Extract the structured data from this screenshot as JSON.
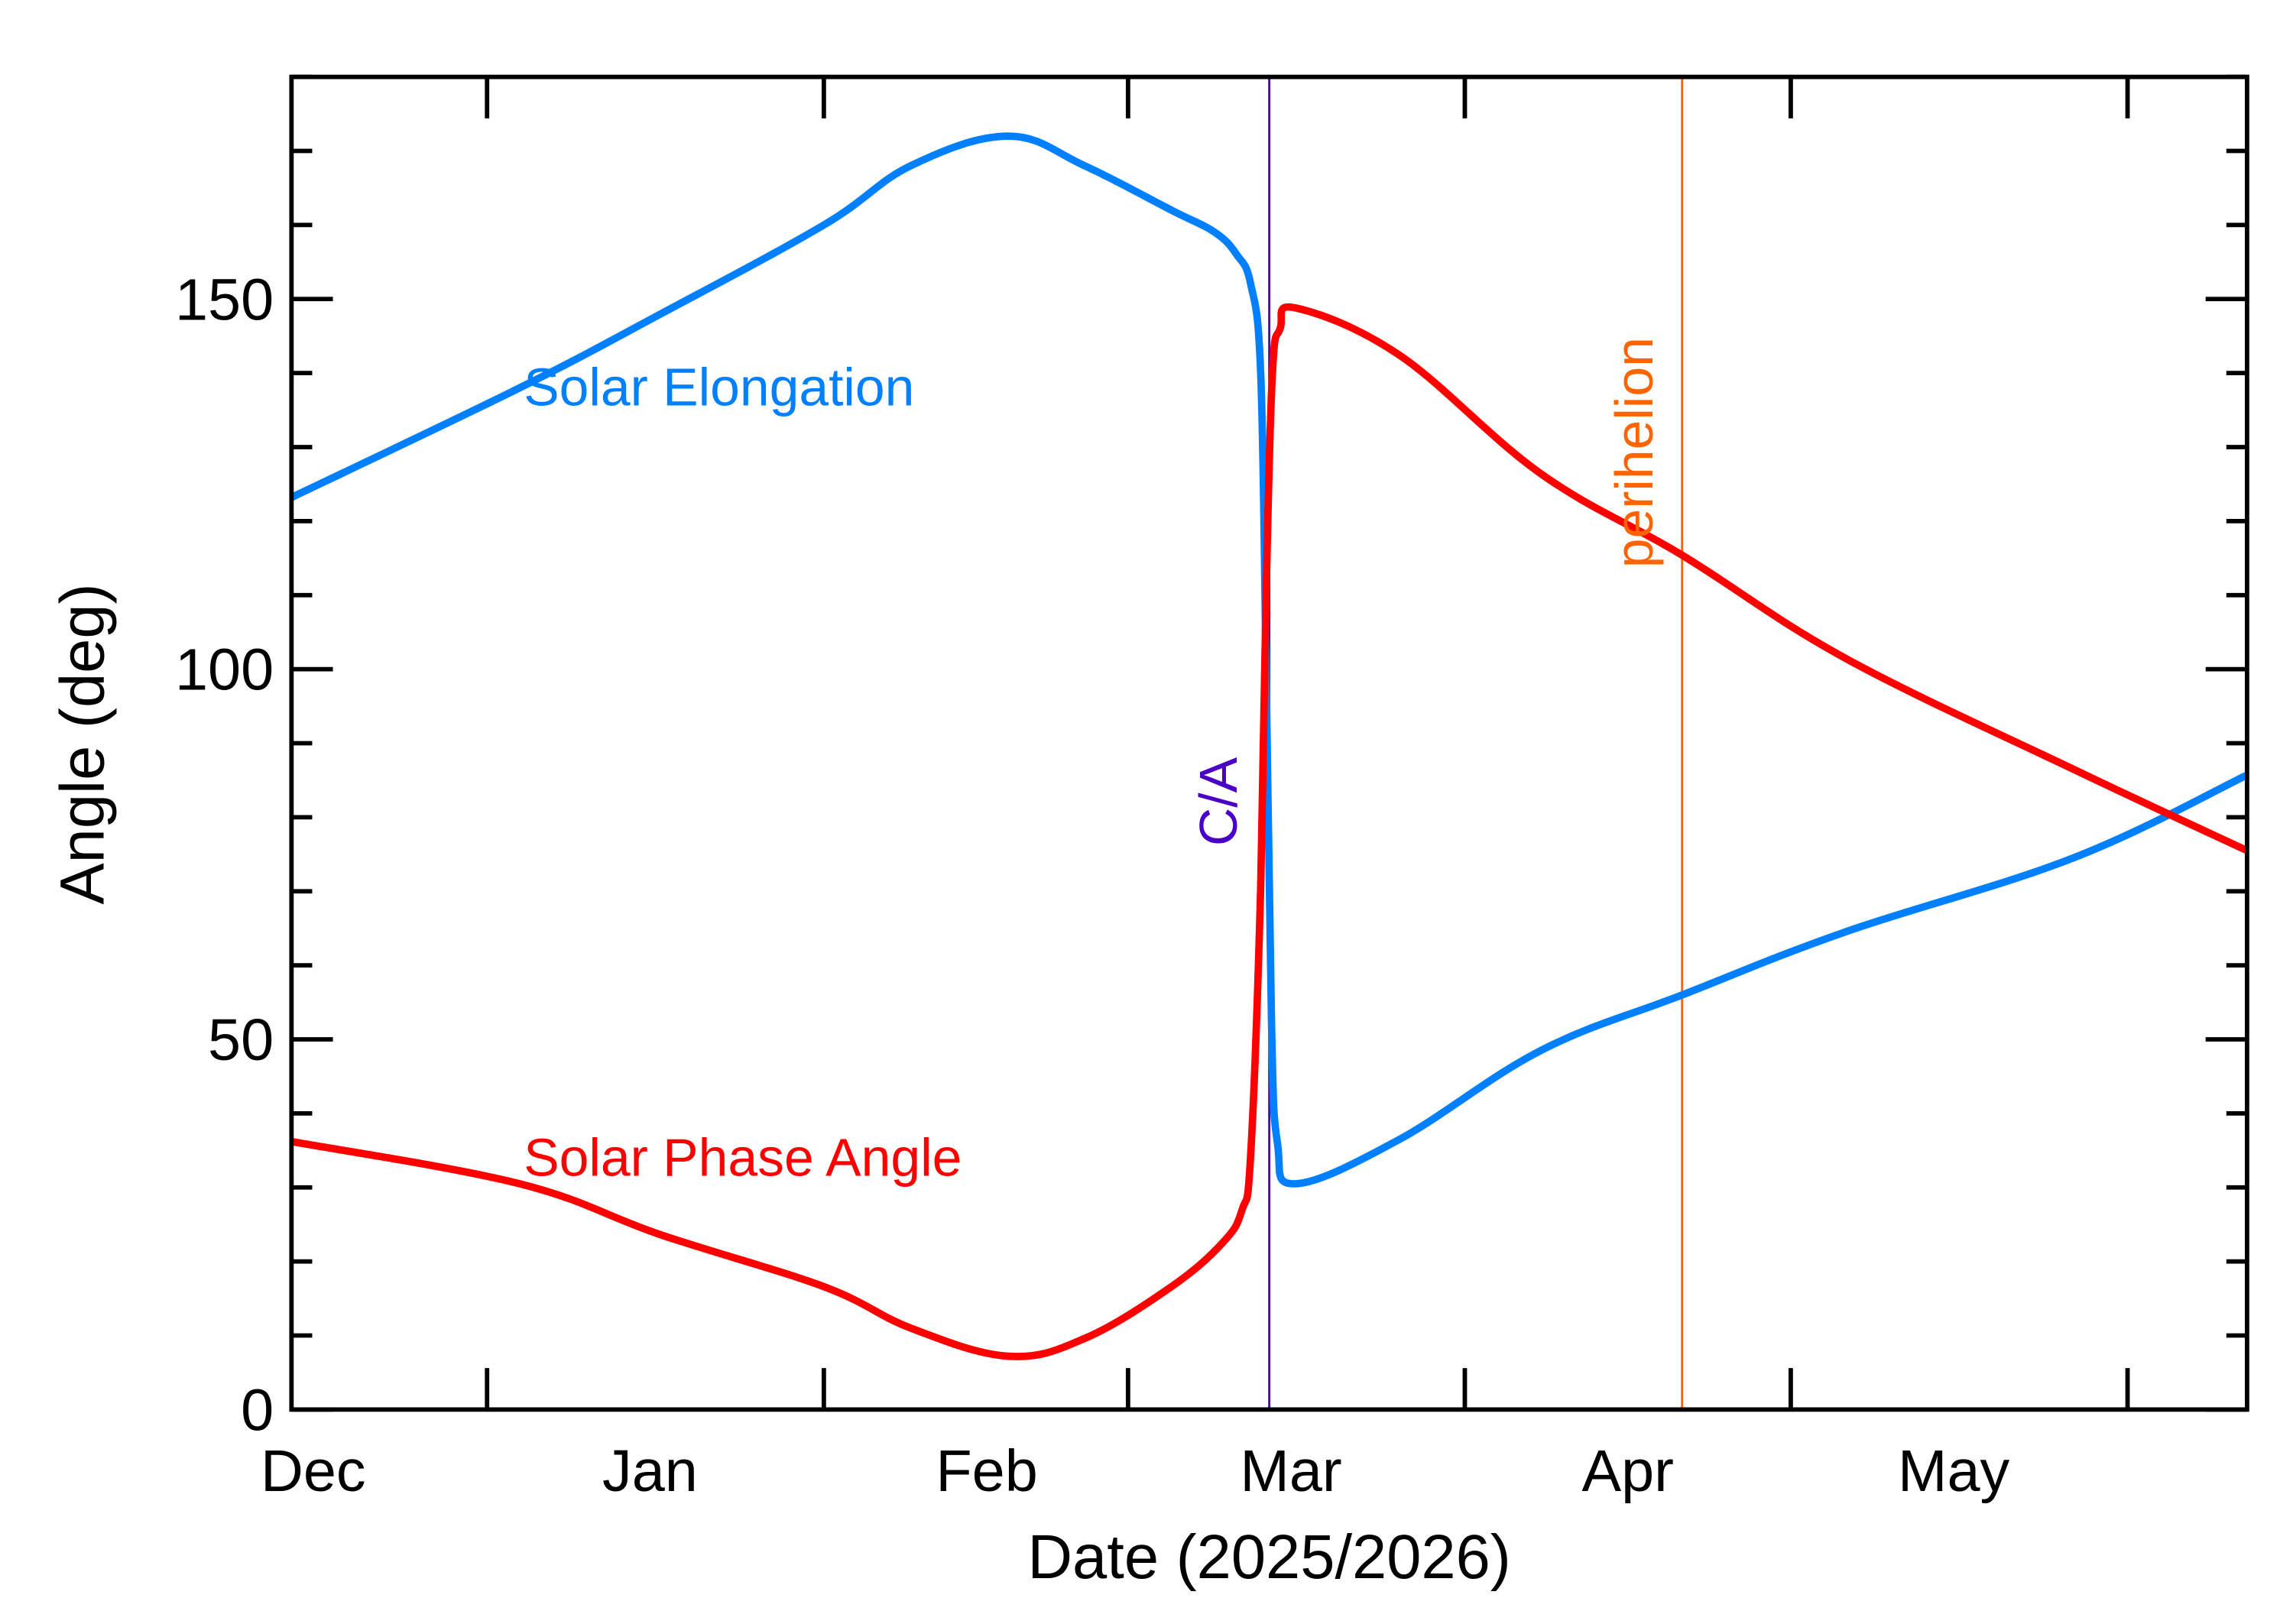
{
  "chart_data": {
    "type": "line",
    "title": "",
    "xlabel": "Date (2025/2026)",
    "ylabel": "Angle (deg)",
    "xlim": [
      "2025-12-14",
      "2026-06-12"
    ],
    "ylim": [
      0,
      180
    ],
    "grid": false,
    "x_tick_labels": [
      {
        "label": "Dec",
        "date": "2025-12-16"
      },
      {
        "label": "Jan",
        "date": "2026-01-16"
      },
      {
        "label": "Feb",
        "date": "2026-02-16"
      },
      {
        "label": "Mar",
        "date": "2026-03-16"
      },
      {
        "label": "Apr",
        "date": "2026-04-16"
      },
      {
        "label": "May",
        "date": "2026-05-16"
      }
    ],
    "x_tick_dates": [
      "2026-01-01",
      "2026-02-01",
      "2026-03-01",
      "2026-04-01",
      "2026-05-01",
      "2026-06-01"
    ],
    "y_ticks": [
      0,
      50,
      100,
      150
    ],
    "y_minor_step": 10,
    "series": [
      {
        "name": "Solar Elongation",
        "color": "#0080ff",
        "points": [
          [
            "2025-12-14T00:00",
            123.2
          ],
          [
            "2026-01-04T00:00",
            138
          ],
          [
            "2026-01-17T00:00",
            148
          ],
          [
            "2026-02-01T00:00",
            160
          ],
          [
            "2026-02-09T00:00",
            168
          ],
          [
            "2026-02-18T00:00",
            172
          ],
          [
            "2026-02-25T00:00",
            168
          ],
          [
            "2026-03-05T00:00",
            162
          ],
          [
            "2026-03-09T00:00",
            159
          ],
          [
            "2026-03-11T00:00",
            156
          ],
          [
            "2026-03-12T07:00",
            152
          ],
          [
            "2026-03-13T05:00",
            140
          ],
          [
            "2026-03-13T17:00",
            100
          ],
          [
            "2026-03-14T05:00",
            52
          ],
          [
            "2026-03-14T18:00",
            36
          ],
          [
            "2026-03-16T10:00",
            30.5
          ],
          [
            "2026-03-26T00:00",
            36.5
          ],
          [
            "2026-04-08T00:00",
            48.5
          ],
          [
            "2026-04-21T00:00",
            56
          ],
          [
            "2026-05-06T00:00",
            64.5
          ],
          [
            "2026-05-27T00:00",
            74.5
          ],
          [
            "2026-06-12T00:00",
            85.7
          ]
        ]
      },
      {
        "name": "Solar Phase Angle",
        "color": "#ff0000",
        "points": [
          [
            "2025-12-14T00:00",
            36.2
          ],
          [
            "2026-01-04T00:00",
            30.5
          ],
          [
            "2026-01-17T00:00",
            23.6
          ],
          [
            "2026-02-01T00:00",
            16.6
          ],
          [
            "2026-02-09T00:00",
            11
          ],
          [
            "2026-02-18T00:00",
            7.2
          ],
          [
            "2026-02-25T00:00",
            9.6
          ],
          [
            "2026-03-05T00:00",
            16.6
          ],
          [
            "2026-03-09T18:00",
            22.6
          ],
          [
            "2026-03-11T12:00",
            27
          ],
          [
            "2026-03-12T07:00",
            34.5
          ],
          [
            "2026-03-13T05:00",
            70.5
          ],
          [
            "2026-03-13T17:00",
            110
          ],
          [
            "2026-03-14T07:00",
            140
          ],
          [
            "2026-03-15T00:00",
            146
          ],
          [
            "2026-03-16T10:00",
            148.8
          ],
          [
            "2026-03-26T00:00",
            142.4
          ],
          [
            "2026-04-08T00:00",
            126.4
          ],
          [
            "2026-04-21T00:00",
            115.4
          ],
          [
            "2026-05-06T00:00",
            101.5
          ],
          [
            "2026-05-27T00:00",
            86.5
          ],
          [
            "2026-06-12T00:00",
            75.5
          ]
        ]
      }
    ],
    "annotations": [
      {
        "label": "C/A",
        "date": "2026-03-14T00:00",
        "color": "#4b00c8"
      },
      {
        "label": "perihelion",
        "date": "2026-04-21T00:00",
        "color": "#ff6400"
      }
    ]
  }
}
